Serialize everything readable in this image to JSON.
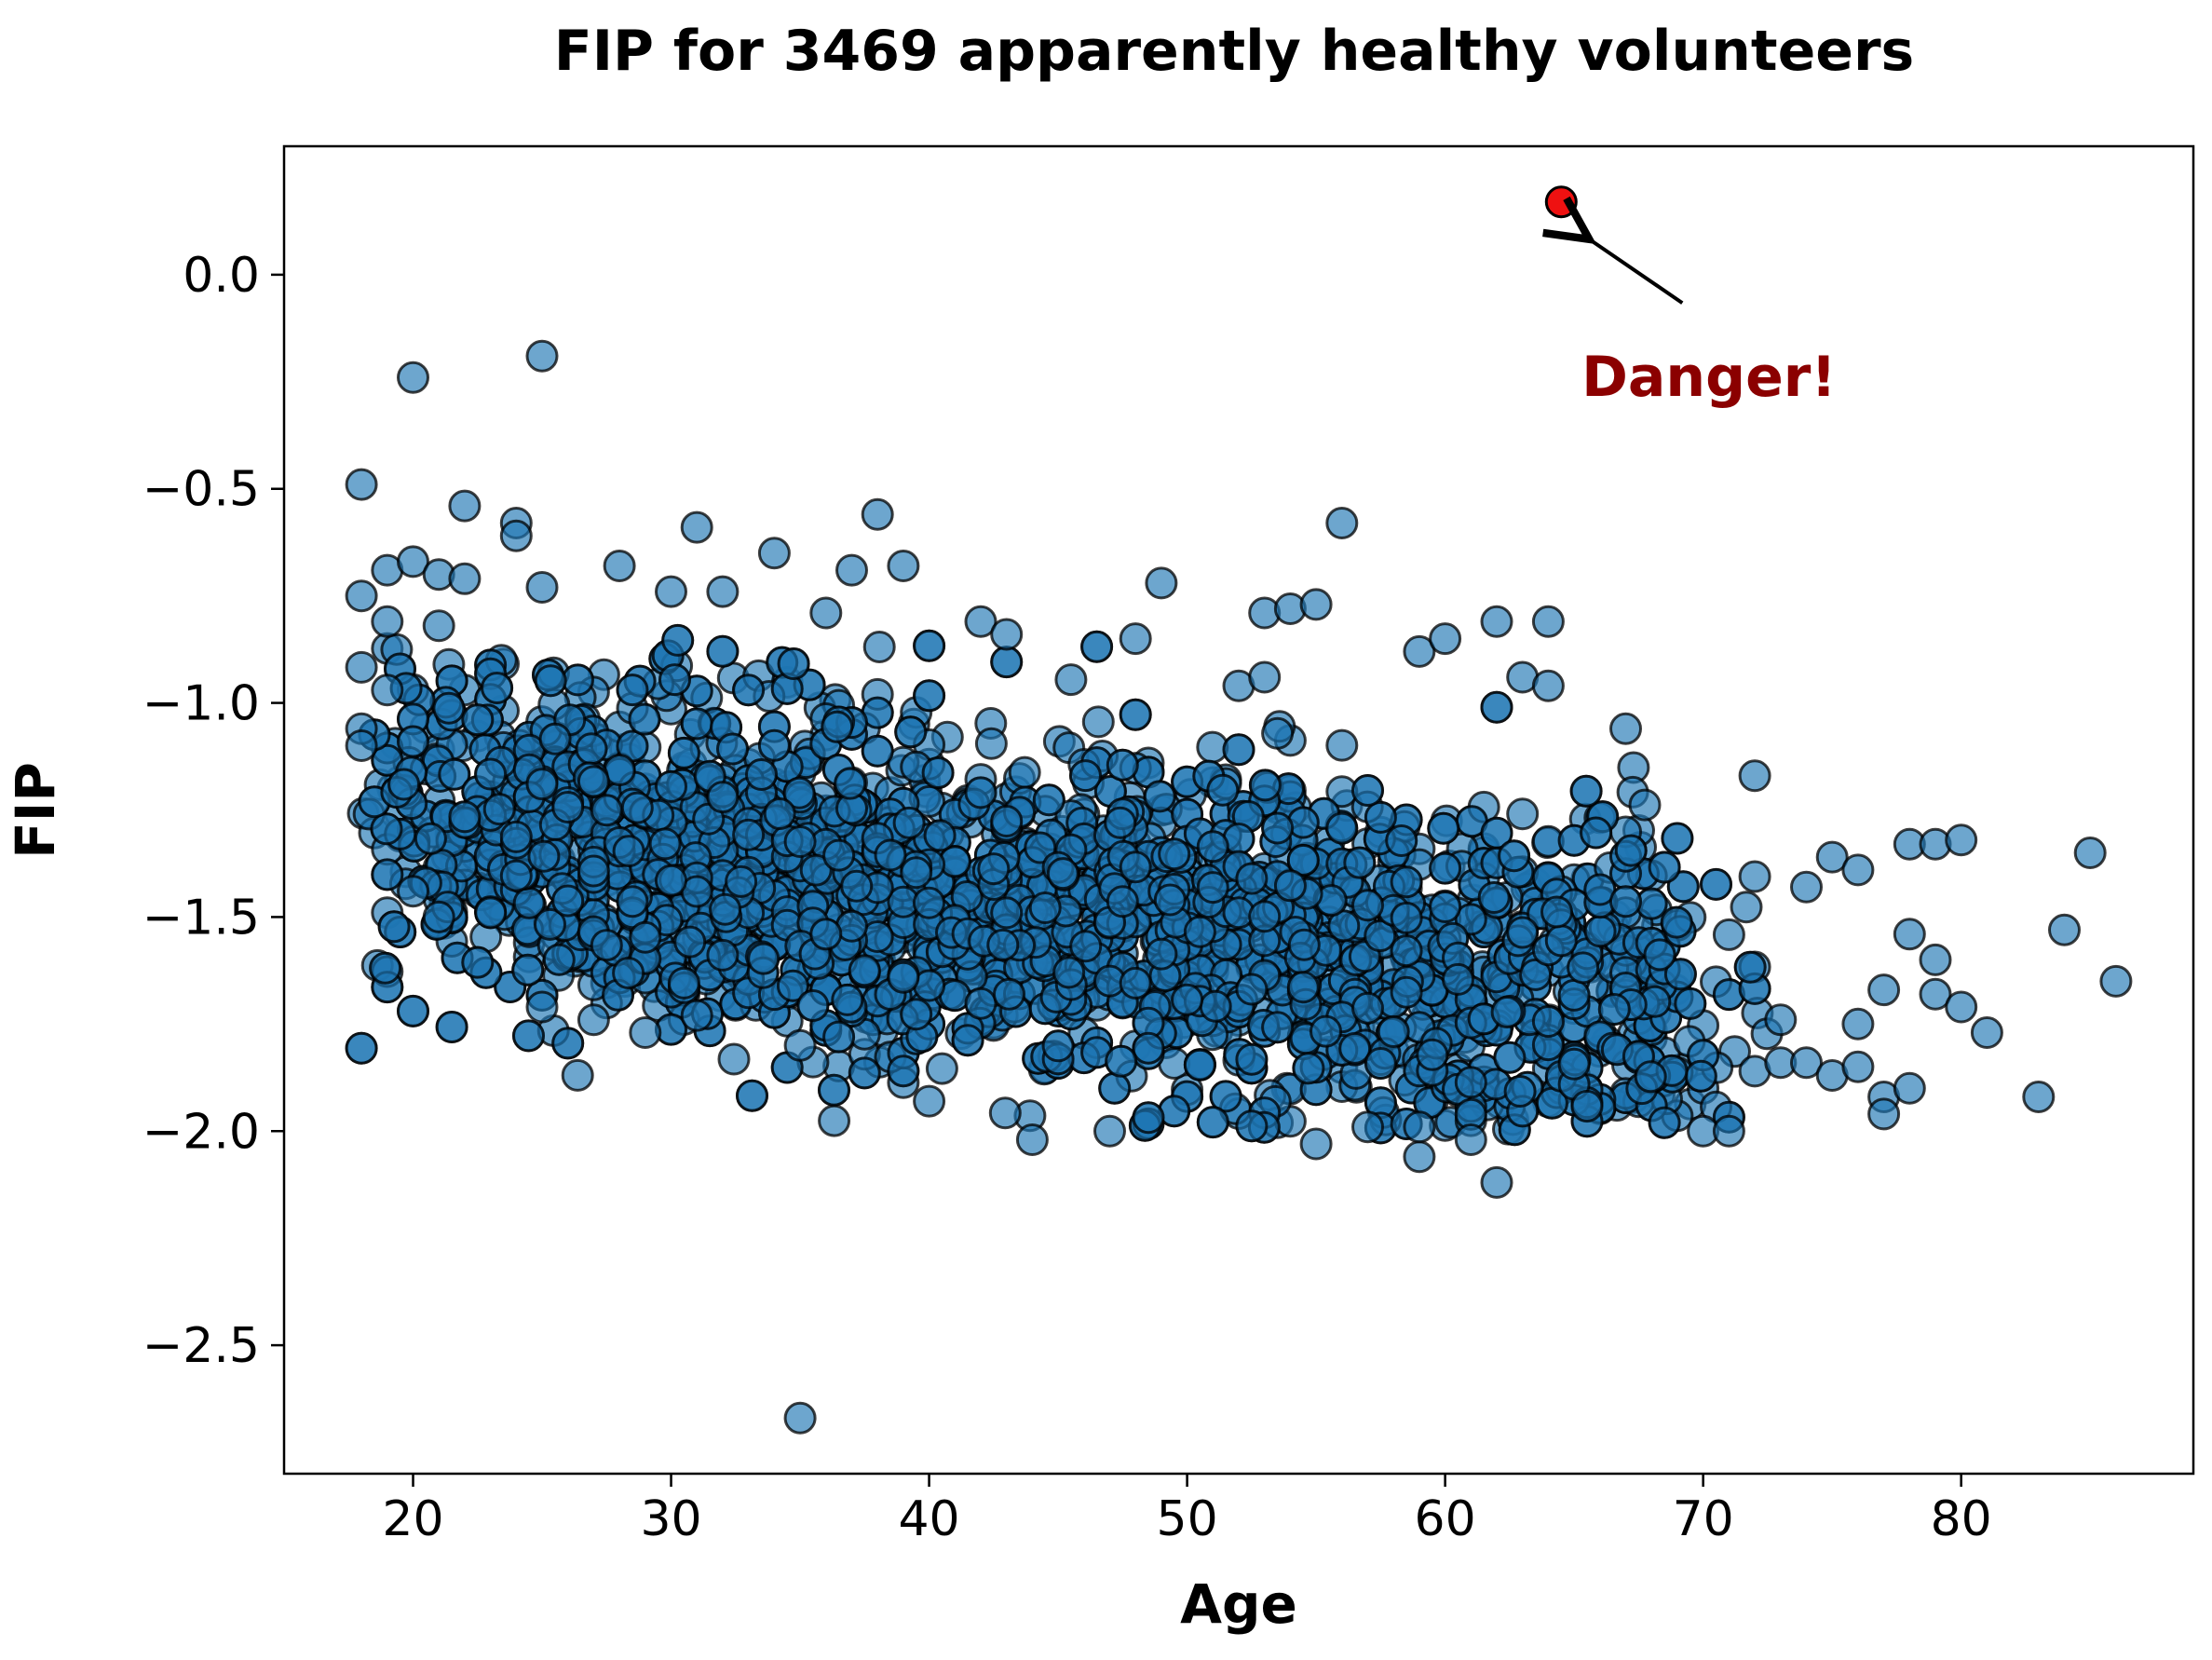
{
  "chart_data": {
    "type": "scatter",
    "title": "FIP for 3469 apparently healthy volunteers",
    "xlabel": "Age",
    "ylabel": "FIP",
    "xlim": [
      15,
      89
    ],
    "ylim": [
      -2.8,
      0.3
    ],
    "xticks": [
      20,
      30,
      40,
      50,
      60,
      70,
      80
    ],
    "yticks": [
      0.0,
      -0.5,
      -1.0,
      -1.5,
      -2.0,
      -2.5
    ],
    "xtick_labels": [
      "20",
      "30",
      "40",
      "50",
      "60",
      "70",
      "80"
    ],
    "ytick_labels": [
      "0.0",
      "−0.5",
      "−1.0",
      "−1.5",
      "−2.0",
      "−2.5"
    ],
    "grid": false,
    "point_color": "#1f77b4",
    "point_edge_color": "#000000",
    "point_alpha": 0.65,
    "highlight": {
      "x": 64.5,
      "y": 0.17,
      "color": "#ee1111",
      "annotation_text": "Danger!",
      "annotation_color": "#8b0000",
      "annotation_text_pos": [
        65,
        -0.24
      ]
    },
    "trend": {
      "age_min": 18,
      "age_max": 86,
      "intercept_age": 18,
      "intercept_fip": -1.05,
      "slope_per_year": -0.009,
      "spread_sd": 0.2
    },
    "outliers": [
      {
        "x": 18,
        "y": -0.49
      },
      {
        "x": 18,
        "y": -0.75
      },
      {
        "x": 18,
        "y": -1.06
      },
      {
        "x": 18,
        "y": -1.1
      },
      {
        "x": 19,
        "y": -0.69
      },
      {
        "x": 19,
        "y": -0.81
      },
      {
        "x": 19,
        "y": -0.97
      },
      {
        "x": 20,
        "y": -0.24
      },
      {
        "x": 20,
        "y": -0.67
      },
      {
        "x": 20,
        "y": -1.44
      },
      {
        "x": 21,
        "y": -0.7
      },
      {
        "x": 21,
        "y": -0.82
      },
      {
        "x": 21,
        "y": -1.5
      },
      {
        "x": 22,
        "y": -0.54
      },
      {
        "x": 22,
        "y": -0.71
      },
      {
        "x": 24,
        "y": -0.58
      },
      {
        "x": 24,
        "y": -0.61
      },
      {
        "x": 25,
        "y": -0.19
      },
      {
        "x": 25,
        "y": -0.73
      },
      {
        "x": 25,
        "y": -1.71
      },
      {
        "x": 27,
        "y": -1.74
      },
      {
        "x": 28,
        "y": -0.68
      },
      {
        "x": 29,
        "y": -1.77
      },
      {
        "x": 30,
        "y": -0.74
      },
      {
        "x": 31,
        "y": -0.59
      },
      {
        "x": 31,
        "y": -1.73
      },
      {
        "x": 32,
        "y": -0.74
      },
      {
        "x": 34,
        "y": -0.65
      },
      {
        "x": 35,
        "y": -1.8
      },
      {
        "x": 35,
        "y": -2.67
      },
      {
        "x": 36,
        "y": -0.79
      },
      {
        "x": 37,
        "y": -0.69
      },
      {
        "x": 38,
        "y": -0.56
      },
      {
        "x": 39,
        "y": -0.68
      },
      {
        "x": 40,
        "y": -1.93
      },
      {
        "x": 42,
        "y": -0.81
      },
      {
        "x": 43,
        "y": -0.84
      },
      {
        "x": 44,
        "y": -2.02
      },
      {
        "x": 47,
        "y": -2.0
      },
      {
        "x": 48,
        "y": -0.85
      },
      {
        "x": 49,
        "y": -0.72
      },
      {
        "x": 53,
        "y": -0.79
      },
      {
        "x": 53,
        "y": -0.94
      },
      {
        "x": 54,
        "y": -0.78
      },
      {
        "x": 55,
        "y": -0.77
      },
      {
        "x": 55,
        "y": -2.03
      },
      {
        "x": 56,
        "y": -0.58
      },
      {
        "x": 57,
        "y": -1.99
      },
      {
        "x": 59,
        "y": -2.06
      },
      {
        "x": 59,
        "y": -1.99
      },
      {
        "x": 59,
        "y": -0.88
      },
      {
        "x": 60,
        "y": -0.85
      },
      {
        "x": 61,
        "y": -2.02
      },
      {
        "x": 62,
        "y": -0.81
      },
      {
        "x": 62,
        "y": -2.12
      },
      {
        "x": 63,
        "y": -0.94
      },
      {
        "x": 64,
        "y": -0.81
      },
      {
        "x": 64,
        "y": -0.96
      },
      {
        "x": 67,
        "y": -1.06
      },
      {
        "x": 70,
        "y": -2.0
      },
      {
        "x": 71,
        "y": -2.0
      },
      {
        "x": 72,
        "y": -1.17
      },
      {
        "x": 72,
        "y": -1.86
      },
      {
        "x": 73,
        "y": -1.74
      },
      {
        "x": 73,
        "y": -1.84
      },
      {
        "x": 74,
        "y": -1.43
      },
      {
        "x": 74,
        "y": -1.84
      },
      {
        "x": 75,
        "y": -1.36
      },
      {
        "x": 75,
        "y": -1.87
      },
      {
        "x": 76,
        "y": -1.39
      },
      {
        "x": 76,
        "y": -1.75
      },
      {
        "x": 76,
        "y": -1.85
      },
      {
        "x": 77,
        "y": -1.67
      },
      {
        "x": 77,
        "y": -1.92
      },
      {
        "x": 77,
        "y": -1.96
      },
      {
        "x": 78,
        "y": -1.33
      },
      {
        "x": 78,
        "y": -1.54
      },
      {
        "x": 78,
        "y": -1.9
      },
      {
        "x": 79,
        "y": -1.33
      },
      {
        "x": 79,
        "y": -1.6
      },
      {
        "x": 79,
        "y": -1.68
      },
      {
        "x": 80,
        "y": -1.32
      },
      {
        "x": 80,
        "y": -1.71
      },
      {
        "x": 81,
        "y": -1.77
      },
      {
        "x": 83,
        "y": -1.92
      },
      {
        "x": 84,
        "y": -1.53
      },
      {
        "x": 85,
        "y": -1.35
      },
      {
        "x": 86,
        "y": -1.65
      }
    ]
  }
}
